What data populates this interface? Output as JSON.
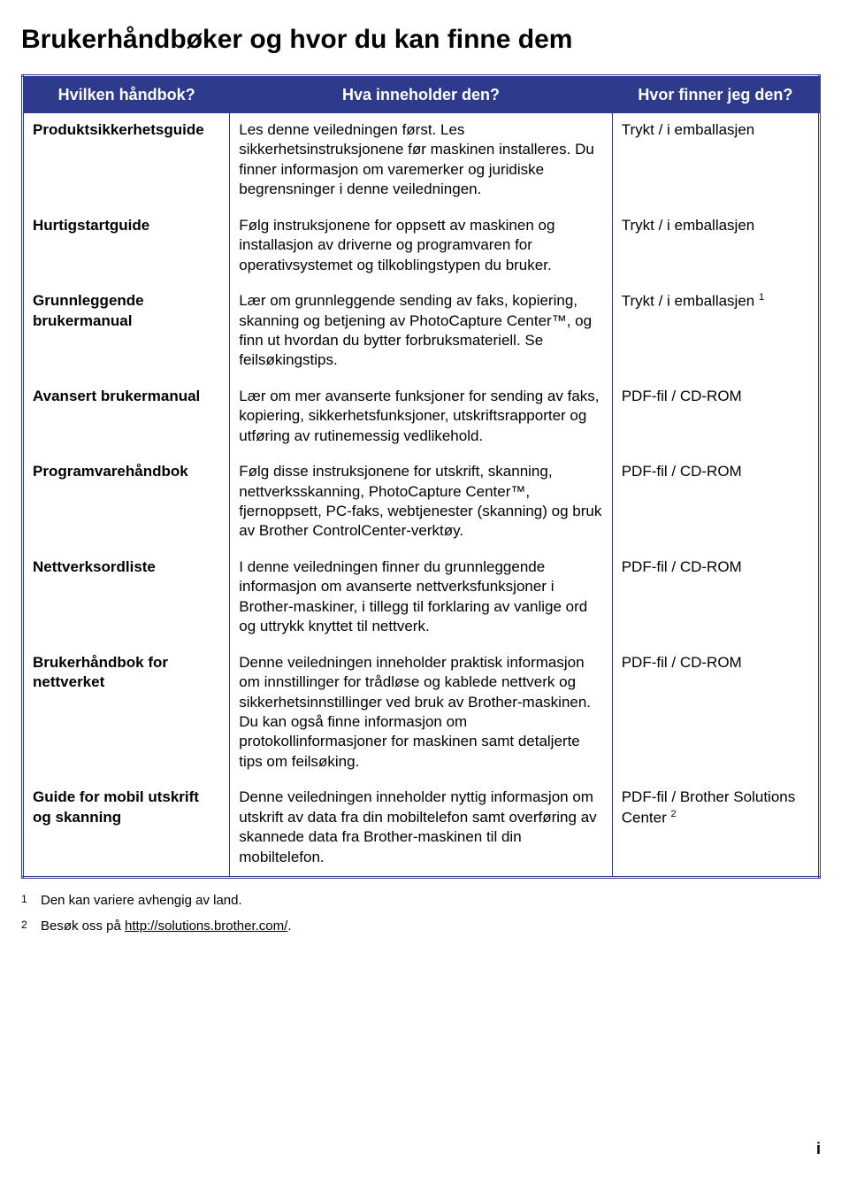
{
  "title": "Brukerhåndbøker og hvor du kan finne dem",
  "table": {
    "headers": {
      "col1": "Hvilken håndbok?",
      "col2": "Hva inneholder den?",
      "col3": "Hvor finner jeg den?"
    },
    "rows": [
      {
        "name": "Produktsikkerhetsguide",
        "desc": "Les denne veiledningen først. Les sikkerhetsinstruksjonene før maskinen installeres. Du finner informasjon om varemerker og juridiske begrensninger i denne veiledningen.",
        "loc": "Trykt / i emballasjen",
        "loc_sup": ""
      },
      {
        "name": "Hurtigstartguide",
        "desc": "Følg instruksjonene for oppsett av maskinen og installasjon av driverne og programvaren for operativsystemet og tilkoblingstypen du bruker.",
        "loc": "Trykt / i emballasjen",
        "loc_sup": ""
      },
      {
        "name": "Grunnleggende brukermanual",
        "desc": "Lær om grunnleggende sending av faks, kopiering, skanning og betjening av PhotoCapture Center™, og finn ut hvordan du bytter forbruksmateriell. Se feilsøkingstips.",
        "loc": "Trykt / i emballasjen ",
        "loc_sup": "1"
      },
      {
        "name": "Avansert brukermanual",
        "desc": "Lær om mer avanserte funksjoner for sending av faks, kopiering, sikkerhetsfunksjoner, utskriftsrapporter og utføring av rutinemessig vedlikehold.",
        "loc": "PDF-fil / CD-ROM",
        "loc_sup": ""
      },
      {
        "name": "Programvarehåndbok",
        "desc": "Følg disse instruksjonene for utskrift, skanning, nettverksskanning, PhotoCapture Center™, fjernoppsett, PC-faks, webtjenester (skanning) og bruk av Brother ControlCenter-verktøy.",
        "loc": "PDF-fil / CD-ROM",
        "loc_sup": ""
      },
      {
        "name": "Nettverksordliste",
        "desc": "I denne veiledningen finner du grunnleggende informasjon om avanserte nettverksfunksjoner i Brother-maskiner, i tillegg til forklaring av vanlige ord og uttrykk knyttet til nettverk.",
        "loc": "PDF-fil / CD-ROM",
        "loc_sup": ""
      },
      {
        "name": "Brukerhåndbok for nettverket",
        "desc": "Denne veiledningen inneholder praktisk informasjon om innstillinger for trådløse og kablede nettverk og sikkerhetsinnstillinger ved bruk av Brother-maskinen. Du kan også finne informasjon om protokollinformasjoner for maskinen samt detaljerte tips om feilsøking.",
        "loc": "PDF-fil / CD-ROM",
        "loc_sup": ""
      },
      {
        "name": "Guide for mobil utskrift og skanning",
        "desc": "Denne veiledningen inneholder nyttig informasjon om utskrift av data fra din mobiltelefon samt overføring av skannede data fra Brother-maskinen til din mobiltelefon.",
        "loc": "PDF-fil / Brother Solutions Center ",
        "loc_sup": "2"
      }
    ]
  },
  "footnotes": [
    {
      "num": "1",
      "text": "Den kan variere avhengig av land."
    },
    {
      "num": "2",
      "text_before": "Besøk oss på ",
      "link_text": "http://solutions.brother.com/",
      "text_after": "."
    }
  ],
  "page_number": "i",
  "colors": {
    "header_bg": "#2e3a8c",
    "header_text": "#ffffff",
    "border": "#2e3a8c",
    "body_text": "#000000",
    "background": "#ffffff"
  },
  "fontsizes": {
    "title": 30,
    "th": 18,
    "td": 17,
    "footnote": 15
  }
}
